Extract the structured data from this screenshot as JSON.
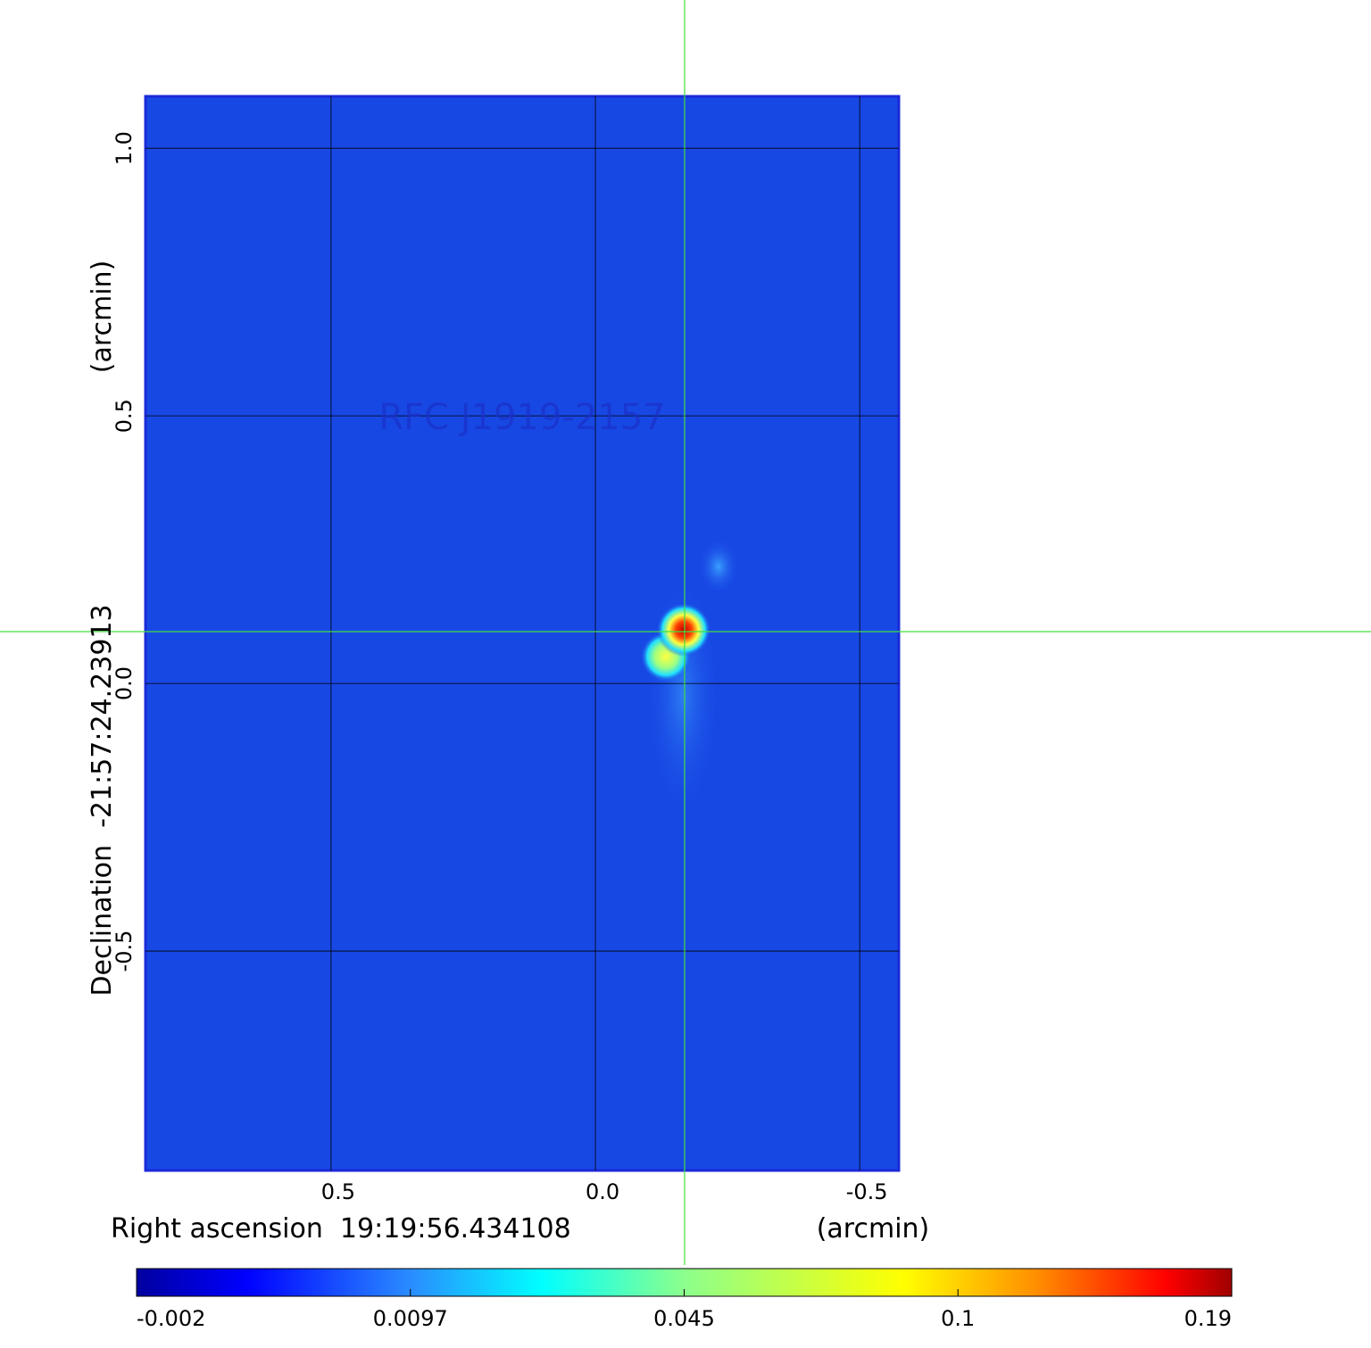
{
  "chart_data": {
    "type": "image",
    "title": "RFC J1919-2157",
    "x_label": "Right ascension  19:19:56.434108",
    "x_unit": "(arcmin)",
    "y_label": "Declination  -21:57:24.23913",
    "y_unit": "(arcmin)",
    "xlim": [
      0.851,
      -0.574
    ],
    "ylim": [
      -0.91,
      1.097
    ],
    "xticks": [
      0.5,
      {
        "value": 0,
        "label": "0.0"
      },
      -0.5
    ],
    "yticks": [
      {
        "value": 1,
        "label": "1.0"
      },
      0.5,
      {
        "value": 0,
        "label": "0.0"
      },
      -0.5
    ],
    "grid": true,
    "colormap": "jet",
    "colorbar_ticks": [
      -0.002,
      0.0097,
      0.045,
      0.1,
      0.19
    ]
  }
}
